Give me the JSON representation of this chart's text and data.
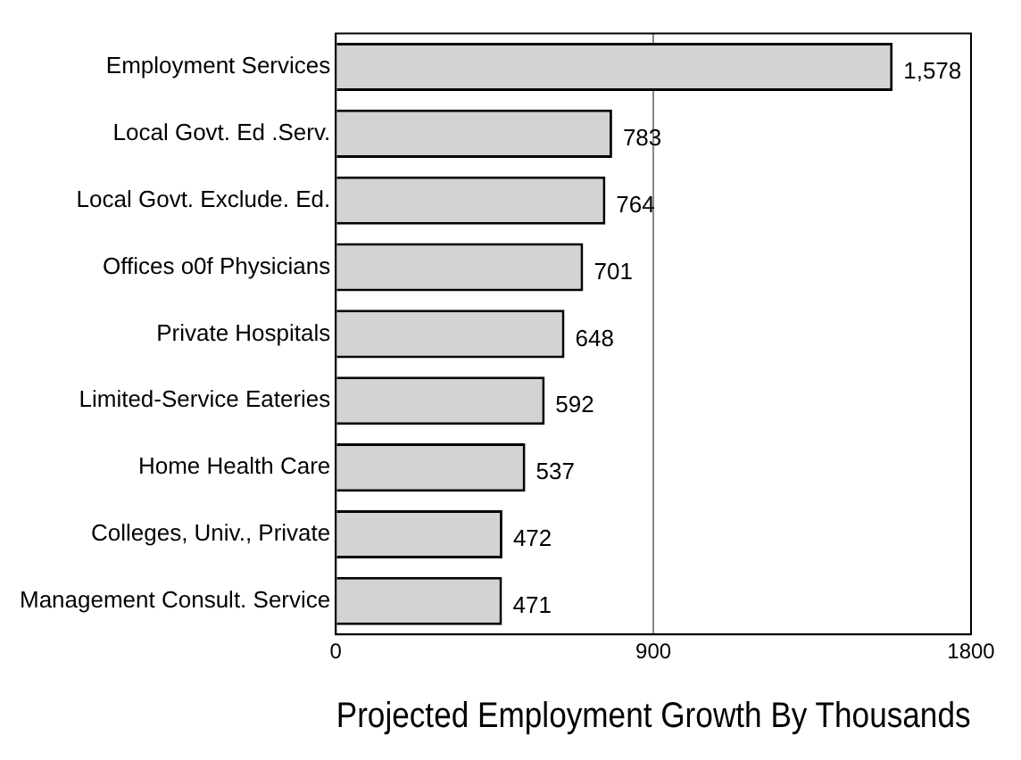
{
  "chart_data": {
    "type": "bar",
    "orientation": "horizontal",
    "xlabel": "Projected Employment Growth By Thousands",
    "categories": [
      "Employment Services",
      "Local Govt. Ed .Serv.",
      "Local Govt. Exclude. Ed.",
      "Offices o0f Physicians",
      "Private Hospitals",
      "Limited-Service Eateries",
      "Home Health Care",
      "Colleges, Univ., Private",
      "Management Consult. Service"
    ],
    "values": [
      1578,
      783,
      764,
      701,
      648,
      592,
      537,
      472,
      471
    ],
    "value_labels": [
      "1,578",
      "783",
      "764",
      "701",
      "648",
      "592",
      "537",
      "472",
      "471"
    ],
    "color": "#d3d3d3",
    "xlim": [
      0,
      1800
    ],
    "xticks": [
      0,
      900,
      1800
    ],
    "grid": "x"
  }
}
